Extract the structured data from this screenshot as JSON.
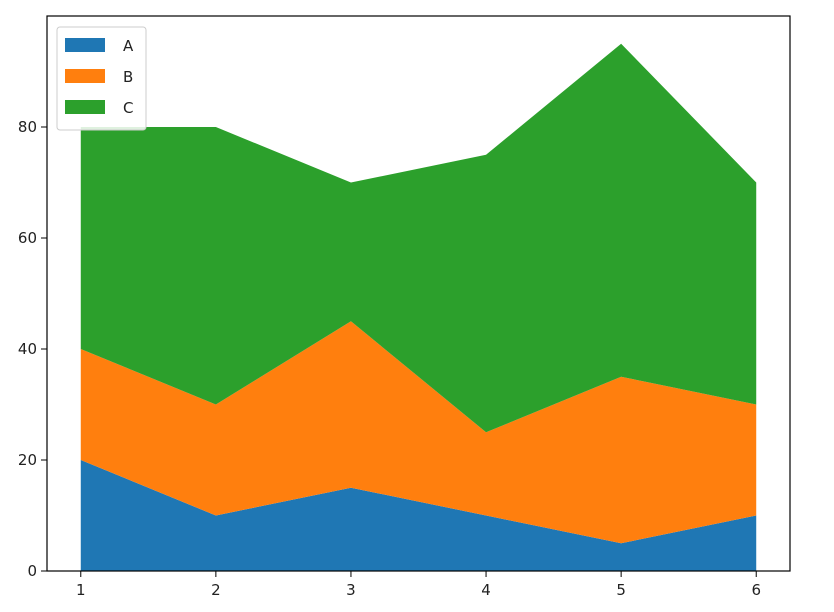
{
  "chart_data": {
    "type": "area",
    "stacked": true,
    "x": [
      1,
      2,
      3,
      4,
      5,
      6
    ],
    "series": [
      {
        "name": "A",
        "color": "#1f77b4",
        "values": [
          20,
          10,
          15,
          10,
          5,
          10
        ]
      },
      {
        "name": "B",
        "color": "#ff7f0e",
        "values": [
          20,
          20,
          30,
          15,
          30,
          20
        ]
      },
      {
        "name": "C",
        "color": "#2ca02c",
        "values": [
          40,
          50,
          25,
          50,
          60,
          40
        ]
      }
    ],
    "xlim": [
      0.75,
      6.25
    ],
    "ylim": [
      0,
      100
    ],
    "x_ticks": [
      1,
      2,
      3,
      4,
      5,
      6
    ],
    "y_ticks": [
      0,
      20,
      40,
      60,
      80
    ],
    "title": "",
    "xlabel": "",
    "ylabel": "",
    "grid": false,
    "legend_position": "upper-left"
  }
}
